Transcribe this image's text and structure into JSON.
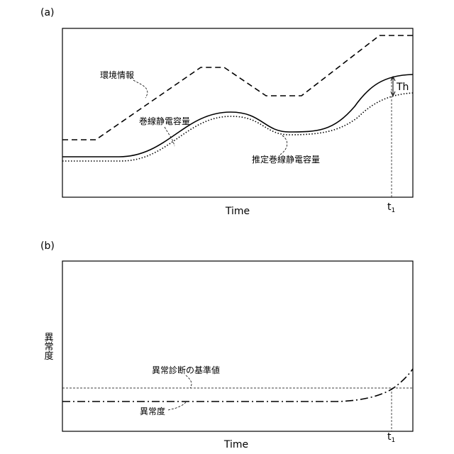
{
  "panel_a": {
    "label": "(a)",
    "x_axis_label": "Time",
    "t1_label": "t",
    "t1_subscript": "1",
    "series": {
      "environment": "環境情報",
      "winding_capacitance": "巻線静電容量",
      "estimated_winding_capacitance": "推定巻線静電容量"
    },
    "threshold_label": "Th"
  },
  "panel_b": {
    "label": "(b)",
    "x_axis_label": "Time",
    "y_axis_label": "異常度",
    "t1_label": "t",
    "t1_subscript": "1",
    "threshold_line_label": "異常診断の基準値",
    "anomaly_curve_label": "異常度"
  }
}
